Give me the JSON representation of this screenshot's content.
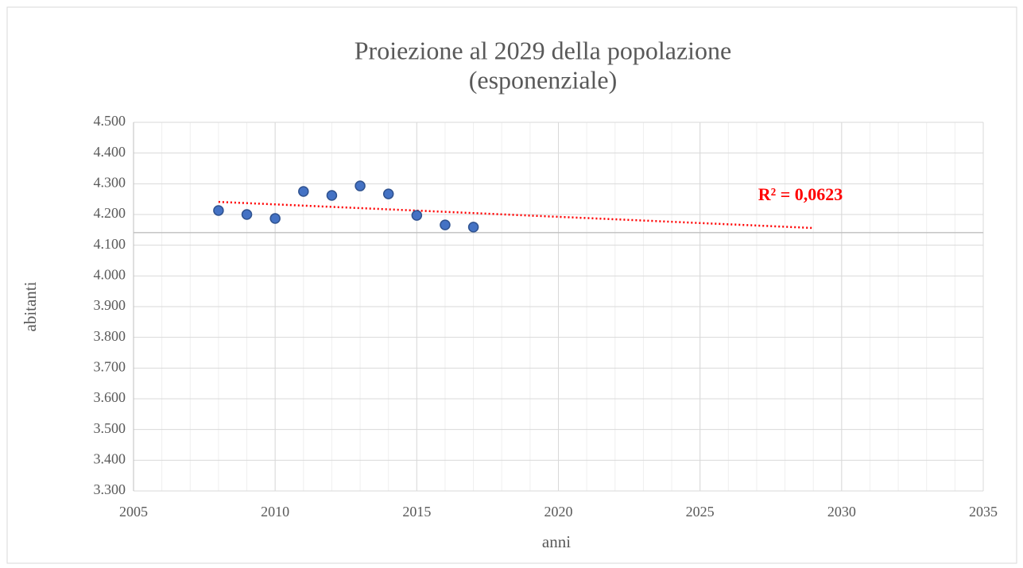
{
  "chart_data": {
    "type": "scatter",
    "title": "Proiezione al 2029 della popolazione",
    "subtitle": "(esponenziale)",
    "x_label": "anni",
    "y_label": "abitanti",
    "series": [
      {
        "name": "abitanti",
        "color": "#4472c4",
        "x": [
          2008,
          2009,
          2010,
          2011,
          2012,
          2013,
          2014,
          2015,
          2016,
          2017
        ],
        "values": [
          4213,
          4200,
          4187,
          4275,
          4262,
          4293,
          4267,
          4197,
          4166,
          4159
        ]
      }
    ],
    "trendline": {
      "type": "exponential",
      "color": "#ff0000",
      "x": [
        2008,
        2029
      ],
      "values": [
        4241,
        4156
      ],
      "annotation": "R² = 0,0623"
    },
    "x_axis_crosses": 4141,
    "xlim": [
      2005,
      2035
    ],
    "xticks": [
      2005,
      2010,
      2015,
      2020,
      2025,
      2030,
      2035
    ],
    "ylim": [
      3300,
      4500
    ],
    "yticks": [
      {
        "value": 3300,
        "label": "3.300"
      },
      {
        "value": 3400,
        "label": "3.400"
      },
      {
        "value": 3500,
        "label": "3.500"
      },
      {
        "value": 3600,
        "label": "3.600"
      },
      {
        "value": 3700,
        "label": "3.700"
      },
      {
        "value": 3800,
        "label": "3.800"
      },
      {
        "value": 3900,
        "label": "3.900"
      },
      {
        "value": 4000,
        "label": "4.000"
      },
      {
        "value": 4100,
        "label": "4.100"
      },
      {
        "value": 4200,
        "label": "4.200"
      },
      {
        "value": 4300,
        "label": "4.300"
      },
      {
        "value": 4400,
        "label": "4.400"
      },
      {
        "value": 4500,
        "label": "4.500"
      }
    ],
    "grid": true,
    "minor_grid_x": true
  }
}
